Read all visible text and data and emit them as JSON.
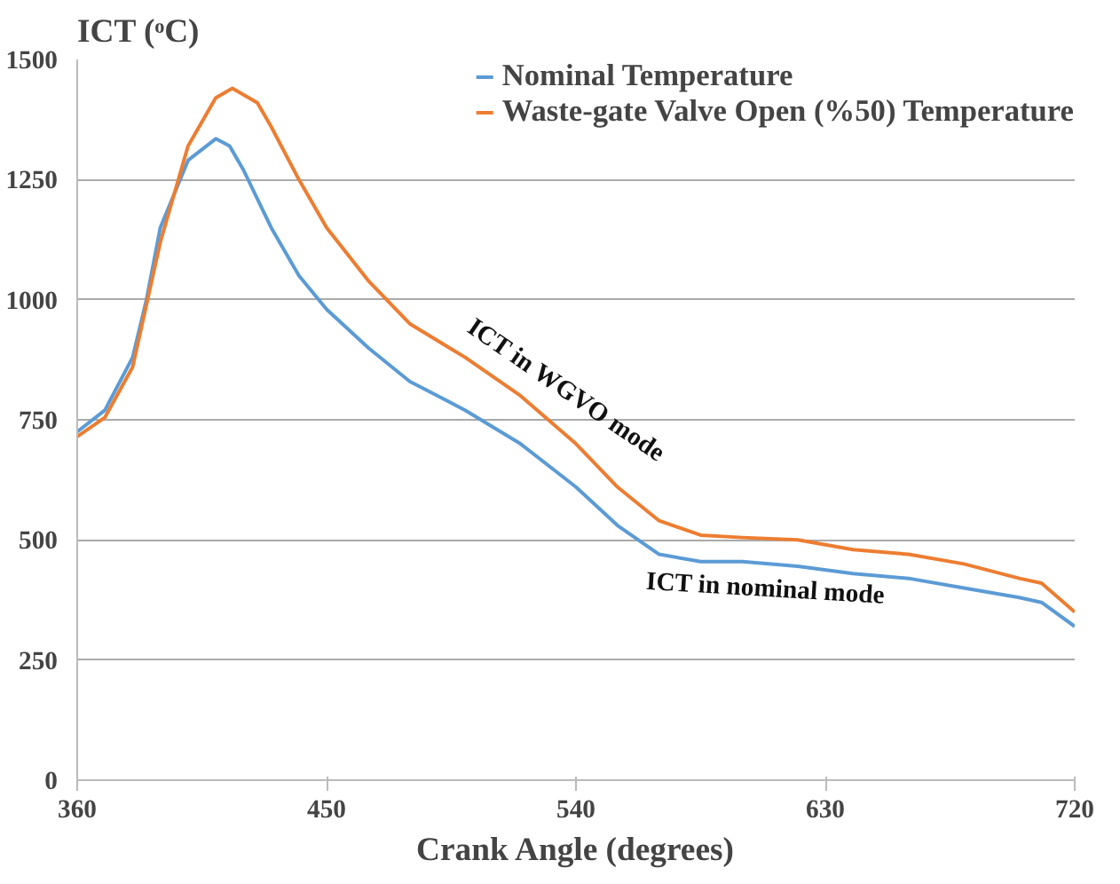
{
  "chart_data": {
    "type": "line",
    "xlabel": "Crank Angle (degrees)",
    "ylabel": "ICT (ᵒC)",
    "xlim": [
      360,
      720
    ],
    "xticks": [
      360,
      450,
      540,
      630,
      720
    ],
    "ylim": [
      0,
      1500
    ],
    "yticks": [
      0,
      250,
      500,
      750,
      1000,
      1250,
      1500
    ],
    "grid": "y",
    "legend": "top",
    "line_style": "solid",
    "marker": "none",
    "series": [
      {
        "name": "Nominal Temperature",
        "color": "#5b9bd5",
        "x": [
          360,
          370,
          380,
          385,
          390,
          400,
          410,
          415,
          420,
          430,
          440,
          450,
          465,
          480,
          500,
          520,
          540,
          555,
          570,
          585,
          600,
          620,
          640,
          660,
          680,
          700,
          708,
          720
        ],
        "values": [
          725,
          770,
          880,
          1000,
          1150,
          1290,
          1335,
          1320,
          1270,
          1150,
          1050,
          980,
          900,
          830,
          770,
          700,
          610,
          530,
          470,
          455,
          455,
          445,
          430,
          420,
          400,
          380,
          370,
          320
        ]
      },
      {
        "name": "Waste-gate Valve Open (%50) Temperature",
        "color": "#ed7d31",
        "x": [
          360,
          370,
          380,
          390,
          400,
          410,
          416,
          425,
          430,
          440,
          450,
          465,
          480,
          500,
          520,
          540,
          555,
          570,
          585,
          600,
          620,
          640,
          660,
          680,
          700,
          708,
          720
        ],
        "values": [
          715,
          755,
          860,
          1120,
          1320,
          1420,
          1440,
          1410,
          1360,
          1250,
          1150,
          1040,
          950,
          880,
          800,
          700,
          610,
          540,
          510,
          505,
          500,
          480,
          470,
          450,
          420,
          410,
          350
        ]
      }
    ],
    "annotations": [
      "ICT in WGVO mode",
      "ICT in nominal mode"
    ]
  }
}
